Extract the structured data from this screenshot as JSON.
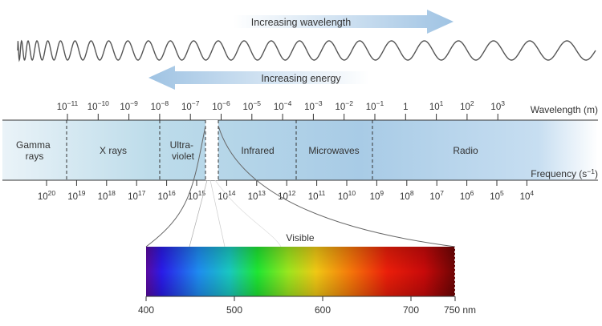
{
  "top_labels": {
    "increasing_wavelength": "Increasing wavelength",
    "increasing_energy": "Increasing energy"
  },
  "wavelength_axis": {
    "label": "Wavelength (m)",
    "ticks": [
      {
        "base": "10",
        "exp": "−11"
      },
      {
        "base": "10",
        "exp": "−10"
      },
      {
        "base": "10",
        "exp": "−9"
      },
      {
        "base": "10",
        "exp": "−8"
      },
      {
        "base": "10",
        "exp": "−7"
      },
      {
        "base": "10",
        "exp": "−6"
      },
      {
        "base": "10",
        "exp": "−5"
      },
      {
        "base": "10",
        "exp": "−4"
      },
      {
        "base": "10",
        "exp": "−3"
      },
      {
        "base": "10",
        "exp": "−2"
      },
      {
        "base": "10",
        "exp": "−1"
      },
      {
        "base": "1",
        "exp": ""
      },
      {
        "base": "10",
        "exp": "1"
      },
      {
        "base": "10",
        "exp": "2"
      },
      {
        "base": "10",
        "exp": "3"
      }
    ]
  },
  "frequency_axis": {
    "label": "Frequency (s−1)",
    "label_base": "Frequency (s",
    "label_exp": "−1",
    "label_close": ")",
    "ticks": [
      {
        "base": "10",
        "exp": "20"
      },
      {
        "base": "10",
        "exp": "19"
      },
      {
        "base": "10",
        "exp": "18"
      },
      {
        "base": "10",
        "exp": "17"
      },
      {
        "base": "10",
        "exp": "16"
      },
      {
        "base": "10",
        "exp": "15"
      },
      {
        "base": "10",
        "exp": "14"
      },
      {
        "base": "10",
        "exp": "13"
      },
      {
        "base": "10",
        "exp": "12"
      },
      {
        "base": "10",
        "exp": "11"
      },
      {
        "base": "10",
        "exp": "10"
      },
      {
        "base": "10",
        "exp": "9"
      },
      {
        "base": "10",
        "exp": "8"
      },
      {
        "base": "10",
        "exp": "7"
      },
      {
        "base": "10",
        "exp": "6"
      },
      {
        "base": "10",
        "exp": "5"
      },
      {
        "base": "10",
        "exp": "4"
      }
    ]
  },
  "regions": [
    {
      "name": "gamma",
      "lines": [
        "Gamma",
        "rays"
      ]
    },
    {
      "name": "xrays",
      "lines": [
        "X rays"
      ]
    },
    {
      "name": "ultraviolet",
      "lines": [
        "Ultra-",
        "violet"
      ]
    },
    {
      "name": "infrared",
      "lines": [
        "Infrared"
      ]
    },
    {
      "name": "microwaves",
      "lines": [
        "Microwaves"
      ]
    },
    {
      "name": "radio",
      "lines": [
        "Radio"
      ]
    }
  ],
  "visible": {
    "label": "Visible",
    "ticks": [
      "400",
      "500",
      "600",
      "700",
      "750 nm"
    ]
  },
  "colors": {
    "band_light": "#dcebf5",
    "band_mid": "#a9cde6",
    "arrow": "#9fc3e3",
    "wave": "#555555"
  }
}
